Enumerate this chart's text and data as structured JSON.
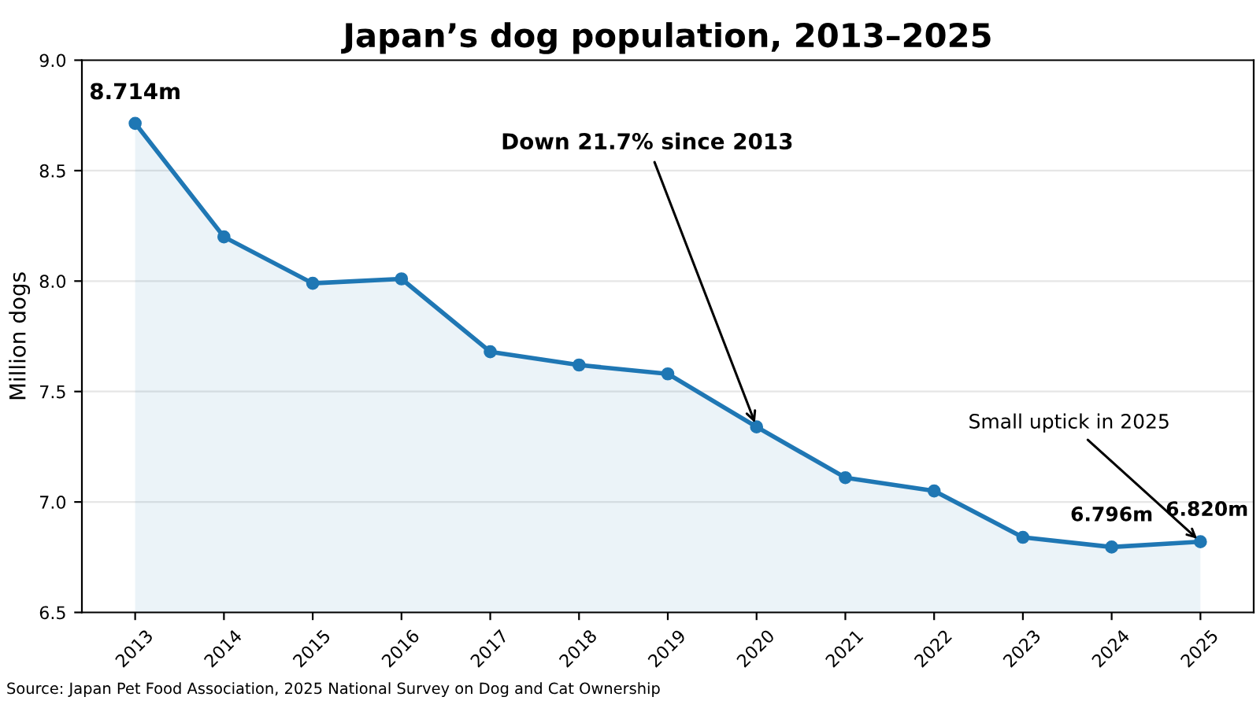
{
  "chart_data": {
    "type": "area",
    "title": "Japan’s dog population, 2013–2025",
    "ylabel": "Million dogs",
    "categories": [
      "2013",
      "2014",
      "2015",
      "2016",
      "2017",
      "2018",
      "2019",
      "2020",
      "2021",
      "2022",
      "2023",
      "2024",
      "2025"
    ],
    "series": [
      {
        "color": "#1f77b4",
        "values": [
          8.714,
          8.2,
          7.99,
          8.01,
          7.68,
          7.62,
          7.58,
          7.34,
          7.11,
          7.05,
          6.84,
          6.796,
          6.82
        ]
      }
    ],
    "ylim": [
      6.5,
      9.0
    ],
    "yticks": [
      6.5,
      {
        "value": 7,
        "label": "7.0"
      },
      7.5,
      {
        "value": 8,
        "label": "8.0"
      },
      8.5,
      {
        "value": 9,
        "label": "9.0"
      }
    ],
    "grid": "y",
    "marker": "circle",
    "line_style": "solid",
    "annotations": [
      {
        "text": "8.714m",
        "x": "2013",
        "y": 8.714
      },
      {
        "text": "6.796m",
        "x": "2024",
        "y": 6.796
      },
      {
        "text": "6.820m",
        "x": "2025",
        "y": 6.82
      },
      {
        "text": "Down 21.7% since 2013",
        "x": "2020",
        "y": 7.34
      },
      {
        "text": "Small uptick in 2025",
        "x": "2025",
        "y": 6.82
      },
      "Source: Japan Pet Food Association, 2025 National Survey on Dog and Cat Ownership"
    ]
  }
}
